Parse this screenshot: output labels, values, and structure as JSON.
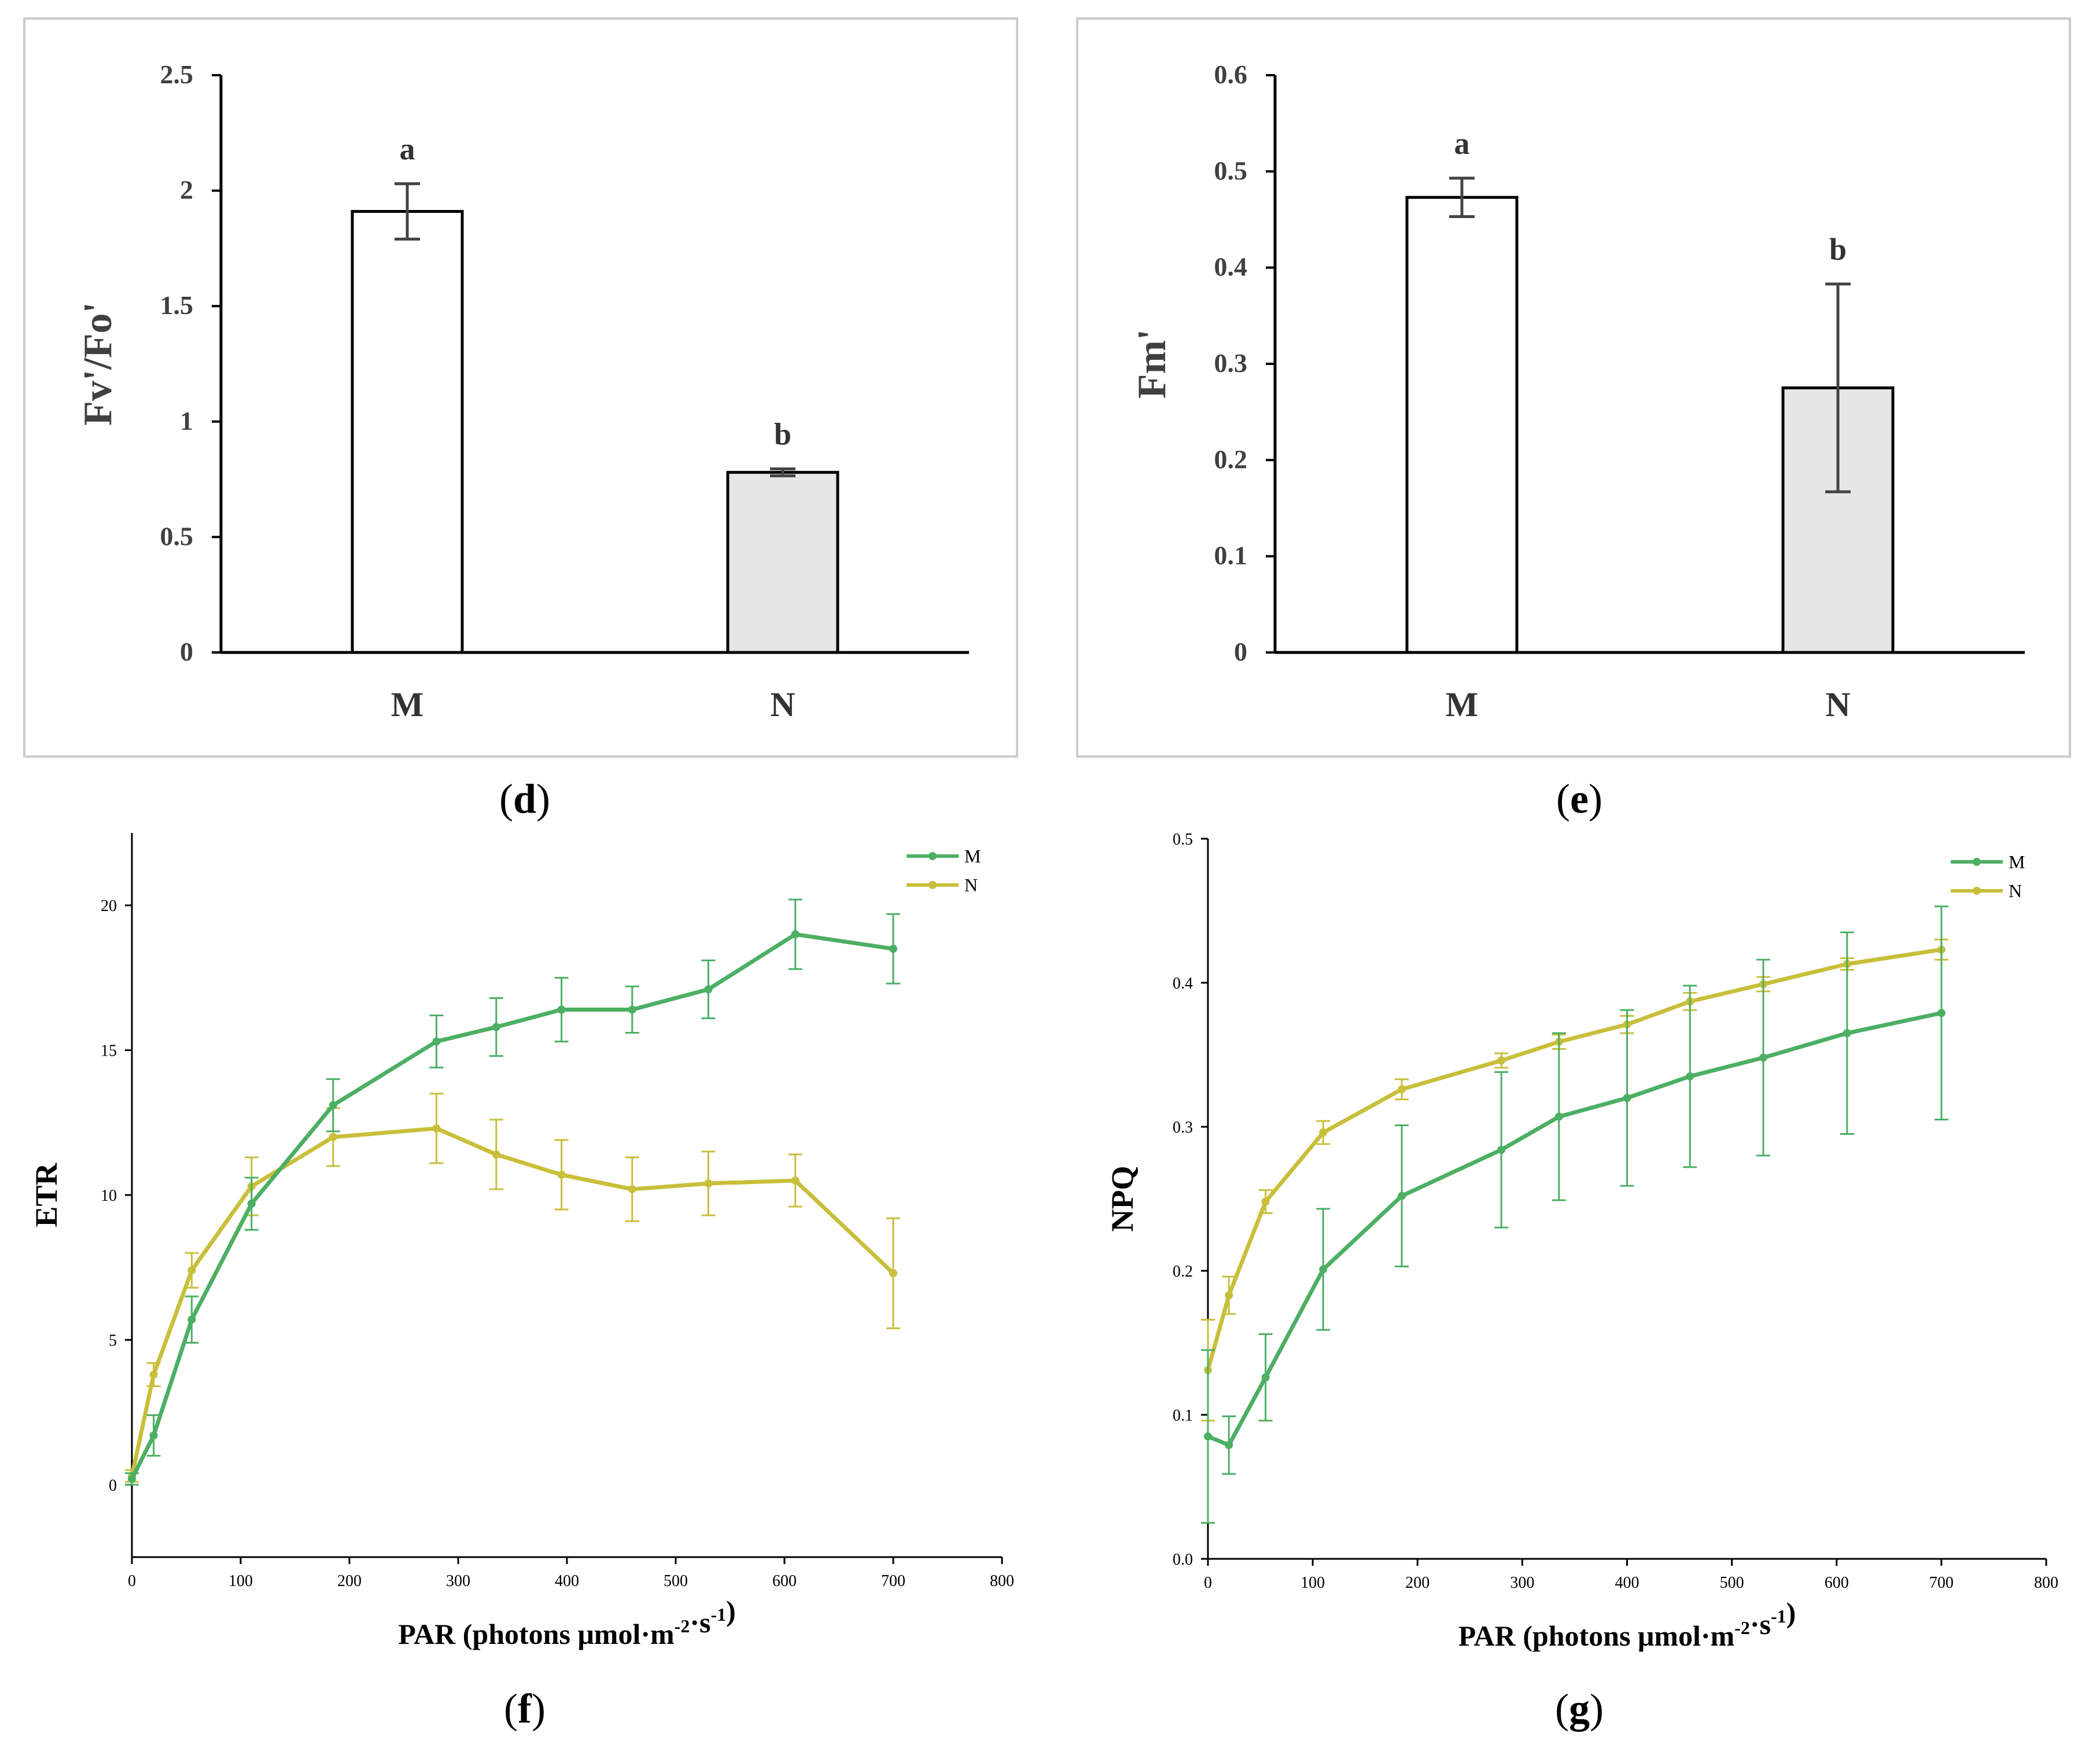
{
  "figure": {
    "panel_labels": [
      "d",
      "e",
      "f",
      "g"
    ]
  },
  "colors": {
    "M_line": "#4caf64",
    "N_line": "#c8bf3a",
    "axis": "#000000",
    "bar_M_fill": "#ffffff",
    "bar_N_fill": "#e6e6e6",
    "frame": "#cccccc",
    "errbar_dark": "#444444"
  },
  "chart_data": [
    {
      "id": "d",
      "type": "bar",
      "ylabel": "Fv'/Fo'",
      "xlabel": "",
      "categories": [
        "M",
        "N"
      ],
      "values": [
        1.91,
        0.78
      ],
      "errors": [
        0.12,
        0.015
      ],
      "letters": [
        "a",
        "b"
      ],
      "ylim": [
        0,
        2.5
      ],
      "yticks": [
        0,
        0.5,
        1,
        1.5,
        2,
        2.5
      ],
      "ytick_labels": [
        "0",
        "0.5",
        "1",
        "1.5",
        "2",
        "2.5"
      ]
    },
    {
      "id": "e",
      "type": "bar",
      "ylabel": "Fm'",
      "xlabel": "",
      "categories": [
        "M",
        "N"
      ],
      "values": [
        0.473,
        0.275
      ],
      "errors": [
        0.02,
        0.108
      ],
      "letters": [
        "a",
        "b"
      ],
      "ylim": [
        0,
        0.6
      ],
      "yticks": [
        0,
        0.1,
        0.2,
        0.3,
        0.4,
        0.5,
        0.6
      ],
      "ytick_labels": [
        "0",
        "0.1",
        "0.2",
        "0.3",
        "0.4",
        "0.5",
        "0.6"
      ]
    },
    {
      "id": "f",
      "type": "line",
      "ylabel": "ETR",
      "xlabel_main": "PAR (photons μmol·m",
      "xlabel_sup1": "-2",
      "xlabel_mid": "·s",
      "xlabel_sup2": "-1",
      "xlabel_end": ")",
      "xlim": [
        0,
        800
      ],
      "ylim": [
        -2.5,
        22.5
      ],
      "xticks": [
        0,
        100,
        200,
        300,
        400,
        500,
        600,
        700,
        800
      ],
      "xtick_labels": [
        "0",
        "100",
        "200",
        "300",
        "400",
        "500",
        "600",
        "700",
        "800"
      ],
      "yticks": [
        0,
        5,
        10,
        15,
        20
      ],
      "ytick_labels": [
        "0",
        "5",
        "10",
        "15",
        "20"
      ],
      "x": [
        0,
        20,
        55,
        110,
        185,
        280,
        335,
        395,
        460,
        530,
        610,
        700
      ],
      "series": [
        {
          "name": "M",
          "values": [
            0.2,
            1.7,
            5.7,
            9.7,
            13.1,
            15.3,
            15.8,
            16.4,
            16.4,
            17.1,
            19.0,
            18.5
          ],
          "errors": [
            0.2,
            0.7,
            0.8,
            0.9,
            0.9,
            0.9,
            1.0,
            1.1,
            0.8,
            1.0,
            1.2,
            1.2
          ]
        },
        {
          "name": "N",
          "values": [
            0.3,
            3.8,
            7.4,
            10.3,
            12.0,
            12.3,
            11.4,
            10.7,
            10.2,
            10.4,
            10.5,
            7.3
          ],
          "errors": [
            0.2,
            0.4,
            0.6,
            1.0,
            1.0,
            1.2,
            1.2,
            1.2,
            1.1,
            1.1,
            0.9,
            1.9
          ]
        }
      ],
      "legend": [
        "M",
        "N"
      ],
      "legend_position": "top-right"
    },
    {
      "id": "g",
      "type": "line",
      "ylabel": "NPQ",
      "xlabel_main": "PAR (photons μmol·m",
      "xlabel_sup1": "-2",
      "xlabel_mid": "·s",
      "xlabel_sup2": "-1",
      "xlabel_end": ")",
      "xlim": [
        0,
        800
      ],
      "ylim": [
        0,
        0.5
      ],
      "xticks": [
        0,
        100,
        200,
        300,
        400,
        500,
        600,
        700,
        800
      ],
      "xtick_labels": [
        "0",
        "100",
        "200",
        "300",
        "400",
        "500",
        "600",
        "700",
        "800"
      ],
      "yticks": [
        0,
        0.1,
        0.2,
        0.3,
        0.4,
        0.5
      ],
      "ytick_labels": [
        "0.0",
        "0.1",
        "0.2",
        "0.3",
        "0.4",
        "0.5"
      ],
      "x": [
        0,
        20,
        55,
        110,
        185,
        280,
        335,
        400,
        460,
        530,
        610,
        700
      ],
      "series": [
        {
          "name": "M",
          "values": [
            0.085,
            0.079,
            0.126,
            0.201,
            0.252,
            0.284,
            0.307,
            0.32,
            0.335,
            0.348,
            0.365,
            0.379
          ],
          "errors": [
            0.06,
            0.02,
            0.03,
            0.042,
            0.049,
            0.054,
            0.058,
            0.061,
            0.063,
            0.068,
            0.07,
            0.074
          ]
        },
        {
          "name": "N",
          "values": [
            0.131,
            0.183,
            0.248,
            0.296,
            0.326,
            0.346,
            0.359,
            0.371,
            0.387,
            0.399,
            0.413,
            0.423
          ],
          "errors": [
            0.035,
            0.013,
            0.008,
            0.008,
            0.007,
            0.005,
            0.005,
            0.006,
            0.006,
            0.005,
            0.004,
            0.007
          ]
        }
      ],
      "legend": [
        "M",
        "N"
      ],
      "legend_position": "top-right"
    }
  ]
}
